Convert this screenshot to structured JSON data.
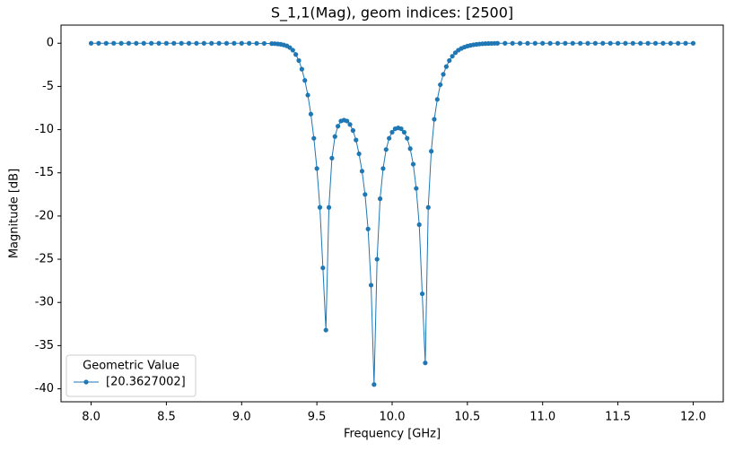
{
  "chart_data": {
    "type": "line",
    "title": "S_1,1(Mag), geom indices: [2500]",
    "x_label": "Frequency [GHz]",
    "y_label": "Magnitude [dB]",
    "legend_title": "Geometric Value",
    "legend_position": "lower left",
    "x": [
      8.0,
      8.05,
      8.1,
      8.15,
      8.2,
      8.25,
      8.3,
      8.35,
      8.4,
      8.45,
      8.5,
      8.55,
      8.6,
      8.65,
      8.7,
      8.75,
      8.8,
      8.85,
      8.9,
      8.95,
      9.0,
      9.05,
      9.1,
      9.15,
      9.2,
      9.22,
      9.24,
      9.26,
      9.28,
      9.3,
      9.32,
      9.34,
      9.36,
      9.38,
      9.4,
      9.42,
      9.44,
      9.46,
      9.48,
      9.5,
      9.52,
      9.54,
      9.56,
      9.58,
      9.6,
      9.62,
      9.64,
      9.66,
      9.68,
      9.7,
      9.72,
      9.74,
      9.76,
      9.78,
      9.8,
      9.82,
      9.84,
      9.86,
      9.88,
      9.9,
      9.92,
      9.94,
      9.96,
      9.98,
      10.0,
      10.02,
      10.04,
      10.06,
      10.08,
      10.1,
      10.12,
      10.14,
      10.16,
      10.18,
      10.2,
      10.22,
      10.24,
      10.26,
      10.28,
      10.3,
      10.32,
      10.34,
      10.36,
      10.38,
      10.4,
      10.42,
      10.44,
      10.46,
      10.48,
      10.5,
      10.52,
      10.54,
      10.56,
      10.58,
      10.6,
      10.62,
      10.64,
      10.66,
      10.68,
      10.7,
      10.75,
      10.8,
      10.85,
      10.9,
      10.95,
      11.0,
      11.05,
      11.1,
      11.15,
      11.2,
      11.25,
      11.3,
      11.35,
      11.4,
      11.45,
      11.5,
      11.55,
      11.6,
      11.65,
      11.7,
      11.75,
      11.8,
      11.85,
      11.9,
      11.95,
      12.0
    ],
    "series": [
      {
        "name": "[20.3627002]",
        "color": "#1f77b4",
        "marker": "o",
        "values": [
          0,
          0,
          0,
          0,
          0,
          0,
          0,
          0,
          0,
          0,
          0,
          0,
          0,
          0,
          0,
          0,
          0,
          0,
          0,
          0,
          0,
          0,
          -0.01,
          -0.02,
          -0.04,
          -0.05,
          -0.08,
          -0.12,
          -0.2,
          -0.3,
          -0.5,
          -0.8,
          -1.3,
          -2.0,
          -3.0,
          -4.3,
          -6.0,
          -8.2,
          -11.0,
          -14.5,
          -19,
          -26,
          -33.2,
          -19,
          -13.3,
          -10.8,
          -9.6,
          -9.0,
          -8.9,
          -9.0,
          -9.4,
          -10.1,
          -11.2,
          -12.8,
          -14.8,
          -17.5,
          -21.5,
          -28,
          -39.5,
          -25,
          -18,
          -14.5,
          -12.3,
          -11.0,
          -10.3,
          -9.9,
          -9.8,
          -9.9,
          -10.3,
          -11.0,
          -12.2,
          -14.0,
          -16.8,
          -21,
          -29,
          -37,
          -19,
          -12.5,
          -8.8,
          -6.5,
          -4.8,
          -3.6,
          -2.7,
          -2.0,
          -1.5,
          -1.1,
          -0.8,
          -0.6,
          -0.45,
          -0.33,
          -0.25,
          -0.18,
          -0.13,
          -0.09,
          -0.06,
          -0.04,
          -0.03,
          -0.02,
          -0.01,
          0,
          0,
          0,
          0,
          0,
          0,
          0,
          0,
          0,
          0,
          0,
          0,
          0,
          0,
          0,
          0,
          0,
          0,
          0,
          0,
          0,
          0,
          0,
          0,
          0,
          0,
          0
        ]
      }
    ],
    "xlim": [
      7.8,
      12.2
    ],
    "ylim": [
      -41.5,
      2.1
    ],
    "xticks": [
      {
        "value": 8,
        "label": "8.0"
      },
      8.5,
      {
        "value": 9,
        "label": "9.0"
      },
      9.5,
      {
        "value": 10,
        "label": "10.0"
      },
      10.5,
      {
        "value": 11,
        "label": "11.0"
      },
      11.5,
      {
        "value": 12,
        "label": "12.0"
      }
    ],
    "yticks": [
      0,
      -5,
      -10,
      -15,
      -20,
      -25,
      -30,
      -35,
      -40
    ],
    "grid": false
  }
}
